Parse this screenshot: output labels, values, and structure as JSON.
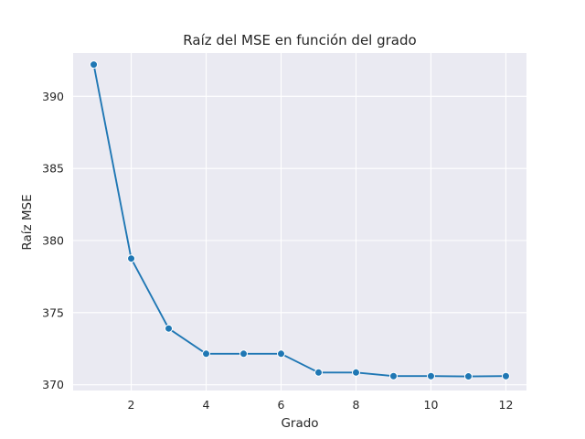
{
  "chart_data": {
    "type": "line",
    "title": "Raíz del MSE en función del grado",
    "xlabel": "Grado",
    "ylabel": "Raíz MSE",
    "xlim": [
      0.45,
      12.55
    ],
    "ylim": [
      369.6,
      393.0
    ],
    "xticks": [
      2,
      4,
      6,
      8,
      10,
      12
    ],
    "yticks": [
      370,
      375,
      380,
      385,
      390
    ],
    "grid": true,
    "series": [
      {
        "color": "#1f77b4",
        "marker": "circle",
        "x": [
          1,
          2,
          3,
          4,
          5,
          6,
          7,
          8,
          9,
          10,
          11,
          12
        ],
        "y": [
          392.2,
          378.75,
          373.9,
          372.15,
          372.15,
          372.15,
          370.85,
          370.85,
          370.6,
          370.6,
          370.58,
          370.6
        ]
      }
    ]
  }
}
